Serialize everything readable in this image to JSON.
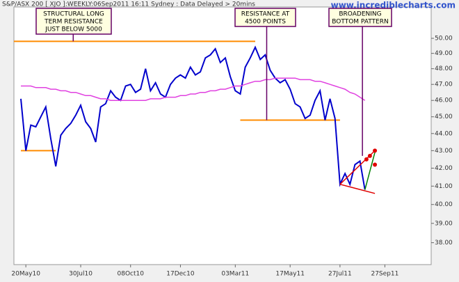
{
  "chart_data": {
    "type": "line",
    "title": "S&P/ASX 200 [ XJO ]:WEEKLY:06Sep2011 16:11 Sydney : Data Delayed > 20mins",
    "watermark": "www.incrediblecharts.com",
    "log_scale": true,
    "grid": false,
    "categories": [
      null,
      "20May10",
      null,
      null,
      null,
      null,
      null,
      null,
      null,
      null,
      null,
      null,
      "30Jul10",
      null,
      null,
      null,
      null,
      null,
      null,
      null,
      null,
      null,
      "08Oct10",
      null,
      null,
      null,
      null,
      null,
      null,
      null,
      null,
      null,
      "17Dec10",
      null,
      null,
      null,
      null,
      null,
      null,
      null,
      null,
      null,
      null,
      "03Mar11",
      null,
      null,
      null,
      null,
      null,
      null,
      null,
      null,
      null,
      null,
      "17May11",
      null,
      null,
      null,
      null,
      null,
      null,
      null,
      null,
      null,
      "27Jul11",
      null,
      null,
      null,
      null,
      null,
      null,
      null,
      null,
      "27Sep11"
    ],
    "series": [
      {
        "color": "#0000cc",
        "values": [
          46.1,
          43.0,
          44.5,
          44.4,
          45.0,
          45.6,
          43.7,
          42.1,
          43.9,
          44.3,
          44.6,
          45.1,
          45.7,
          44.7,
          44.3,
          43.5,
          45.6,
          45.8,
          46.6,
          46.2,
          46.0,
          46.9,
          47.0,
          46.5,
          46.7,
          48.0,
          46.6,
          47.1,
          46.4,
          46.2,
          47.0,
          47.4,
          47.6,
          47.4,
          48.1,
          47.6,
          47.8,
          48.7,
          48.9,
          49.3,
          48.4,
          48.7,
          47.5,
          46.6,
          46.4,
          48.1,
          48.7,
          49.4,
          48.6,
          48.9,
          47.9,
          47.4,
          47.1,
          47.3,
          46.7,
          45.8,
          45.6,
          44.9,
          45.1,
          46.0,
          46.6,
          44.8,
          46.1,
          44.9,
          41.1,
          41.7,
          41.1,
          42.2,
          42.4,
          40.8,
          null,
          null,
          null,
          null
        ]
      },
      {
        "color": "#e040e0",
        "values": [
          46.9,
          46.9,
          46.9,
          46.8,
          46.8,
          46.8,
          46.7,
          46.7,
          46.6,
          46.6,
          46.5,
          46.5,
          46.4,
          46.3,
          46.3,
          46.2,
          46.1,
          46.1,
          46.0,
          46.0,
          46.0,
          46.0,
          46.0,
          46.0,
          46.0,
          46.0,
          46.1,
          46.1,
          46.1,
          46.2,
          46.2,
          46.2,
          46.3,
          46.3,
          46.4,
          46.4,
          46.5,
          46.5,
          46.6,
          46.6,
          46.7,
          46.7,
          46.8,
          46.9,
          46.9,
          47.0,
          47.1,
          47.2,
          47.2,
          47.3,
          47.3,
          47.4,
          47.4,
          47.4,
          47.4,
          47.4,
          47.3,
          47.3,
          47.3,
          47.2,
          47.2,
          47.1,
          47.0,
          46.9,
          46.8,
          46.7,
          46.5,
          46.4,
          46.2,
          46.0,
          null,
          null,
          null,
          null
        ]
      }
    ],
    "ylim": [
      36.9,
      52.15
    ],
    "yticks": [
      {
        "value": 38,
        "label": "38.00"
      },
      {
        "value": 39,
        "label": "39.00"
      },
      {
        "value": 40,
        "label": "40.00"
      },
      {
        "value": 41,
        "label": "41.00"
      },
      {
        "value": 42,
        "label": "42.00"
      },
      {
        "value": 43,
        "label": "43.00"
      },
      {
        "value": 44,
        "label": "44.00"
      },
      {
        "value": 45,
        "label": "45.00"
      },
      {
        "value": 46,
        "label": "46.00"
      },
      {
        "value": 47,
        "label": "47.00"
      },
      {
        "value": 48,
        "label": "48.00"
      },
      {
        "value": 49,
        "label": "49.00"
      },
      {
        "value": 50,
        "label": "50.00"
      }
    ],
    "levels": [
      {
        "color": "#ff8c00",
        "value": 49.8,
        "from": -1.4,
        "to": 47
      },
      {
        "color": "#ff8c00",
        "value": 43.0,
        "from": 0,
        "to": 7
      },
      {
        "color": "#ff8c00",
        "value": 44.8,
        "from": 44,
        "to": 64
      }
    ],
    "segments": [
      {
        "color": "#e00000",
        "points": [
          [
            64,
            41.1
          ],
          [
            71,
            43.0
          ]
        ]
      },
      {
        "color": "#e00000",
        "points": [
          [
            64,
            41.1
          ],
          [
            71,
            40.6
          ]
        ]
      },
      {
        "color": "#008000",
        "points": [
          [
            69,
            40.8
          ],
          [
            71,
            42.9
          ]
        ]
      }
    ],
    "dots": {
      "color": "#e00000",
      "points": [
        [
          69.3,
          42.5
        ],
        [
          70,
          42.7
        ],
        [
          71,
          43.0
        ],
        [
          71,
          42.2
        ]
      ]
    },
    "annotations": [
      {
        "text": [
          "STRUCTURAL LONG",
          "TERM RESISTANCE",
          "JUST BELOW 5000"
        ],
        "x": 10.5,
        "y": 49.8
      },
      {
        "text": [
          "RESISTANCE AT",
          "4500 POINTS"
        ],
        "x": 49.3,
        "y": 44.8
      },
      {
        "text": [
          "BROADENING",
          "BOTTOM PATTERN"
        ],
        "x": 68.5,
        "y": 42.7
      }
    ]
  }
}
